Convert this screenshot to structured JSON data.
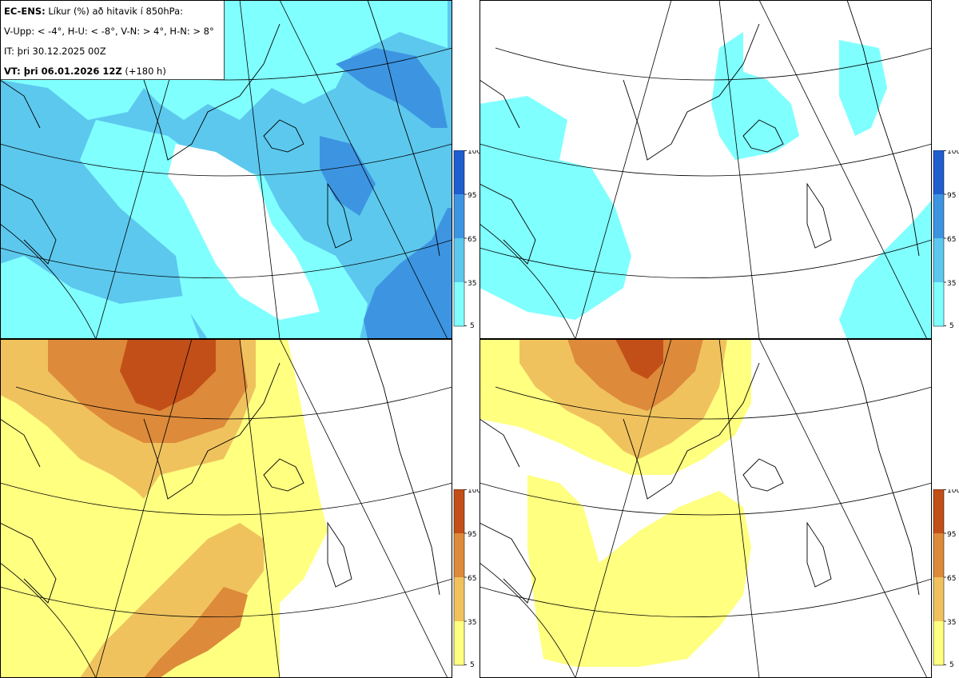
{
  "header": {
    "line1_bold": "EC-ENS:",
    "line1_rest": "Líkur (%) að hitavik í 850hPa:",
    "line2": "V-Upp: < -4°, H-U: < -8°, V-N: > 4°, H-N: > 8°",
    "line3": "IT: þri 30.12.2025 00Z",
    "line4_bold": "VT: þri 06.01.2026 12Z",
    "line4_rest": "(+180 h)"
  },
  "colors": {
    "blue": [
      "#80ffff",
      "#5cc8ee",
      "#3d95e2",
      "#1f5ecf"
    ],
    "orange": [
      "#ffff80",
      "#f0c25e",
      "#dd8a3a",
      "#c24f18"
    ],
    "coast": "#000000",
    "grid": "#000000"
  },
  "panels": [
    {
      "name": "cold-weak",
      "description_label": "V-Upp"
    },
    {
      "name": "cold-strong",
      "description_label": "H-U"
    },
    {
      "name": "warm-weak",
      "description_label": "V-N"
    },
    {
      "name": "warm-strong",
      "description_label": "H-N"
    }
  ],
  "legend_ticks": [
    "100",
    "95",
    "65",
    "35",
    "5"
  ]
}
